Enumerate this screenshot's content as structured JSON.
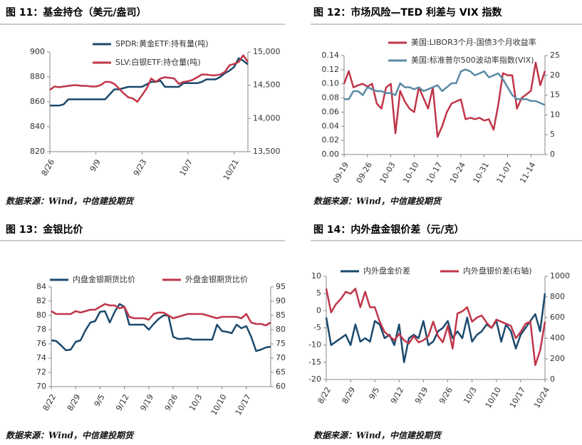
{
  "chart_data": [
    {
      "type": "line",
      "title": "图 11：基金持仓（美元/盎司）",
      "source": "数据来源：Wind，中信建投期货",
      "categories": [
        "8/26",
        null,
        null,
        null,
        null,
        null,
        null,
        null,
        null,
        null,
        "9/9",
        null,
        null,
        null,
        null,
        null,
        null,
        null,
        null,
        null,
        "9/23",
        null,
        null,
        null,
        null,
        null,
        null,
        null,
        null,
        null,
        "10/7",
        null,
        null,
        null,
        null,
        null,
        null,
        null,
        null,
        null,
        "10/21",
        null,
        null,
        null
      ],
      "series": [
        {
          "name": "SPDR:黄金ETF:持有量(吨)",
          "color": "#1b4a6e",
          "values": [
            857,
            857,
            857,
            858,
            862,
            862,
            862,
            862,
            862,
            862,
            862,
            862,
            862,
            866,
            870,
            870,
            871,
            872,
            872,
            872,
            872,
            874,
            876,
            876,
            877,
            872,
            872,
            872,
            872,
            875,
            875,
            875,
            875,
            876,
            878,
            878,
            878,
            880,
            883,
            885,
            888,
            895,
            893,
            890
          ]
        },
        {
          "name": "SLV:白银ETF:持仓量(吨)",
          "color": "#c0364a",
          "axis": "y2",
          "values": [
            14430,
            14480,
            14470,
            14480,
            14490,
            14500,
            14500,
            14490,
            14490,
            14480,
            14480,
            14500,
            14550,
            14550,
            14520,
            14450,
            14380,
            14320,
            14300,
            14250,
            14350,
            14450,
            14600,
            14550,
            14600,
            14620,
            14610,
            14600,
            14520,
            14550,
            14560,
            14580,
            14620,
            14660,
            14660,
            14650,
            14650,
            14660,
            14700,
            14800,
            14820,
            14850,
            14950,
            14850
          ]
        }
      ],
      "ylim": [
        820,
        900
      ],
      "yticks": [
        820,
        840,
        860,
        880,
        900
      ],
      "y2lim": [
        13500,
        15000
      ],
      "y2ticks": [
        {
          "value": 13500,
          "label": "13,500"
        },
        {
          "value": 14000,
          "label": "14,000"
        },
        {
          "value": 14500,
          "label": "14,500"
        },
        {
          "value": 15000,
          "label": "15,000"
        }
      ]
    },
    {
      "type": "line",
      "title": "图 12：市场风险—TED 利差与 VIX 指数",
      "source": "数据来源：Wind，中信建投期货",
      "categories": [
        "09-19",
        null,
        null,
        null,
        null,
        "09-26",
        null,
        null,
        null,
        null,
        "10-03",
        null,
        null,
        null,
        null,
        "10-10",
        null,
        null,
        null,
        null,
        "10-17",
        null,
        null,
        null,
        null,
        "10-24",
        null,
        null,
        null,
        null,
        "10-31",
        null,
        null,
        null,
        null,
        "11-07",
        null,
        null,
        null,
        null,
        "11-14",
        null,
        null,
        null
      ],
      "series": [
        {
          "name": "美国:LIBOR3个月-国债3个月收益率",
          "color": "#c0364a",
          "values": [
            0.1,
            0.118,
            0.095,
            0.098,
            0.1,
            0.096,
            0.1,
            0.072,
            0.065,
            0.095,
            0.1,
            0.03,
            0.09,
            0.075,
            0.065,
            0.06,
            0.095,
            0.08,
            0.065,
            0.095,
            0.025,
            0.04,
            0.06,
            0.072,
            0.075,
            0.078,
            0.05,
            0.052,
            0.05,
            0.052,
            0.048,
            0.05,
            0.035,
            0.07,
            0.115,
            0.112,
            0.112,
            0.065,
            0.08,
            0.085,
            0.09,
            0.13,
            0.098,
            0.118
          ]
        },
        {
          "name": "美国:标准普尔500波动率指数(VIX)",
          "color": "#5b8aa6",
          "axis": "y2",
          "values": [
            14,
            14,
            16,
            16,
            15,
            17,
            16.5,
            16,
            16,
            15.5,
            15.5,
            15,
            18,
            17,
            17,
            16.5,
            17,
            16,
            16.5,
            17,
            17.5,
            16,
            17,
            18,
            18,
            21,
            21.5,
            21,
            20,
            20.5,
            21,
            19.5,
            20,
            20.5,
            19,
            17,
            15,
            14,
            14,
            14,
            13.5,
            13.5,
            13,
            12.5
          ]
        }
      ],
      "ylim": [
        0,
        0.14
      ],
      "yticks": [
        {
          "value": 0,
          "label": "0.00"
        },
        {
          "value": 0.02,
          "label": "0.02"
        },
        {
          "value": 0.04,
          "label": "0.04"
        },
        {
          "value": 0.06,
          "label": "0.06"
        },
        {
          "value": 0.08,
          "label": "0.08"
        },
        {
          "value": 0.1,
          "label": "0.10"
        },
        {
          "value": 0.12,
          "label": "0.12"
        },
        {
          "value": 0.14,
          "label": "0.14"
        }
      ],
      "y2lim": [
        0,
        25
      ],
      "y2ticks": [
        0,
        5,
        10,
        15,
        20,
        25
      ]
    },
    {
      "type": "line",
      "title": "图 13：金银比价",
      "source": "数据来源：Wind，中信建投期货",
      "categories": [
        "8/22",
        null,
        null,
        null,
        null,
        "8/29",
        null,
        null,
        null,
        null,
        "9/5",
        null,
        null,
        null,
        null,
        "9/12",
        null,
        null,
        null,
        null,
        "9/19",
        null,
        null,
        null,
        null,
        "9/26",
        null,
        null,
        null,
        null,
        "10/3",
        null,
        null,
        null,
        null,
        "10/10",
        null,
        null,
        null,
        null,
        "10/17",
        null,
        null,
        null,
        null,
        null
      ],
      "series": [
        {
          "name": "内盘金银期货比价",
          "color": "#1b4a6e",
          "values": [
            76.5,
            76.4,
            75.8,
            75.1,
            75.2,
            76.3,
            76.5,
            77.9,
            79,
            79.2,
            80.5,
            80.6,
            79,
            80.5,
            81.6,
            81.2,
            78.7,
            78.7,
            78.7,
            78.7,
            78,
            78.8,
            79.5,
            80,
            80,
            77,
            76.7,
            76.7,
            76.8,
            76.6,
            76.6,
            76.6,
            76.6,
            76.6,
            78.7,
            77.8,
            77.7,
            77.5,
            78.7,
            78.2,
            78.5,
            77,
            75,
            75.2,
            75.5,
            75.6
          ]
        },
        {
          "name": "外盘金银期货比价",
          "color": "#c0364a",
          "axis": "y2",
          "values": [
            86.5,
            85.5,
            85.5,
            85.5,
            85.5,
            86.5,
            86,
            86.5,
            87,
            87,
            88,
            89,
            88.5,
            88.5,
            87.5,
            88,
            84.5,
            84,
            84,
            84,
            83.5,
            85.5,
            86,
            86,
            85,
            84,
            84.5,
            85,
            85.5,
            85.5,
            85.5,
            85.5,
            85,
            84.5,
            84,
            84.5,
            84.5,
            84.5,
            84.5,
            84,
            85.5,
            82.5,
            82,
            82,
            81.5,
            82.5
          ]
        }
      ],
      "ylim": [
        70,
        84
      ],
      "yticks": [
        70,
        72,
        74,
        76,
        78,
        80,
        82,
        84
      ],
      "y2lim": [
        60,
        95
      ],
      "y2ticks": [
        60,
        65,
        70,
        75,
        80,
        85,
        90,
        95
      ]
    },
    {
      "type": "line",
      "title": "图 14：内外盘金银价差（元/克）",
      "source": "数据来源：Wind，中信建投期货",
      "categories": [
        "8/22",
        null,
        null,
        null,
        null,
        "8/29",
        null,
        null,
        null,
        null,
        "9/5",
        null,
        null,
        null,
        null,
        "9/12",
        null,
        null,
        null,
        null,
        "9/19",
        null,
        null,
        null,
        null,
        "9/26",
        null,
        null,
        null,
        null,
        "10/3",
        null,
        null,
        null,
        null,
        "10/10",
        null,
        null,
        null,
        null,
        "10/17",
        null,
        null,
        null,
        null,
        "10/24"
      ],
      "series": [
        {
          "name": "内外盘金价差",
          "color": "#1b4a6e",
          "values": [
            -2,
            -10,
            -9,
            -8,
            -7,
            -10,
            -4,
            -9,
            -8,
            -9,
            -3,
            -4,
            -8,
            -7,
            -10,
            -4,
            -15,
            -8,
            -7,
            -8,
            -3,
            -10,
            -9,
            -6,
            -5,
            -3,
            -8,
            -6,
            -8,
            -2,
            -9,
            -7,
            -6,
            -4,
            -5,
            -3,
            -9,
            -4,
            -6,
            -11,
            -7,
            -5,
            -3,
            -1,
            -6,
            5
          ]
        },
        {
          "name": "内外盘银价差(右轴)",
          "color": "#c0364a",
          "axis": "y2",
          "values": [
            880,
            650,
            730,
            780,
            850,
            830,
            880,
            700,
            850,
            700,
            700,
            560,
            460,
            420,
            380,
            440,
            380,
            350,
            420,
            360,
            380,
            420,
            560,
            420,
            360,
            520,
            300,
            640,
            660,
            700,
            560,
            600,
            620,
            550,
            500,
            580,
            560,
            540,
            520,
            400,
            460,
            540,
            560,
            140,
            280,
            560
          ]
        }
      ],
      "ylim": [
        -20,
        10
      ],
      "yticks": [
        -20,
        -15,
        -10,
        -5,
        0,
        5,
        10
      ],
      "y2lim": [
        0,
        1000
      ],
      "y2ticks": [
        0,
        200,
        400,
        600,
        800,
        1000
      ]
    }
  ]
}
